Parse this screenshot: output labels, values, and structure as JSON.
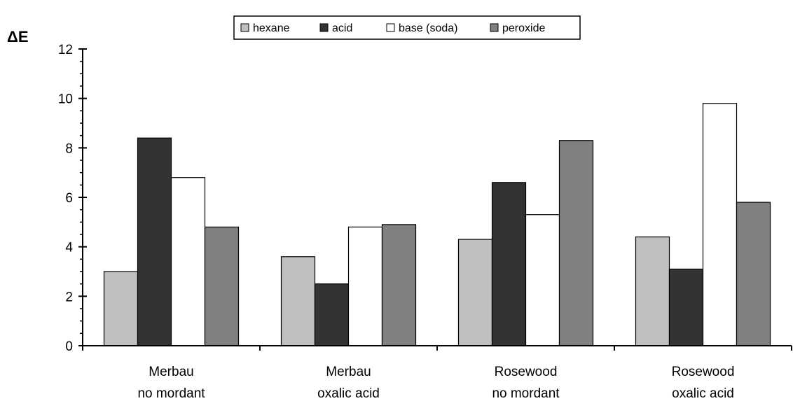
{
  "chart_data": {
    "type": "bar",
    "ylabel": "ΔE",
    "xlabel": "",
    "ylim": [
      0,
      12
    ],
    "yticks": [
      "0",
      "2",
      "4",
      "6",
      "8",
      "10",
      "12"
    ],
    "grid": false,
    "legend_position": "top-center",
    "categories": [
      [
        "Merbau",
        "no mordant"
      ],
      [
        "Merbau",
        "oxalic acid"
      ],
      [
        "Rosewood",
        "no mordant"
      ],
      [
        "Rosewood",
        "oxalic acid"
      ]
    ],
    "series": [
      {
        "name": "hexane",
        "color": "#c0c0c0",
        "values": [
          3.0,
          3.6,
          4.3,
          4.4
        ]
      },
      {
        "name": "acid",
        "color": "#333333",
        "values": [
          8.4,
          2.5,
          6.6,
          3.1
        ]
      },
      {
        "name": "base (soda)",
        "color": "#ffffff",
        "values": [
          6.8,
          4.8,
          5.3,
          9.8
        ]
      },
      {
        "name": "peroxide",
        "color": "#808080",
        "values": [
          4.8,
          4.9,
          8.3,
          5.8
        ]
      }
    ]
  }
}
